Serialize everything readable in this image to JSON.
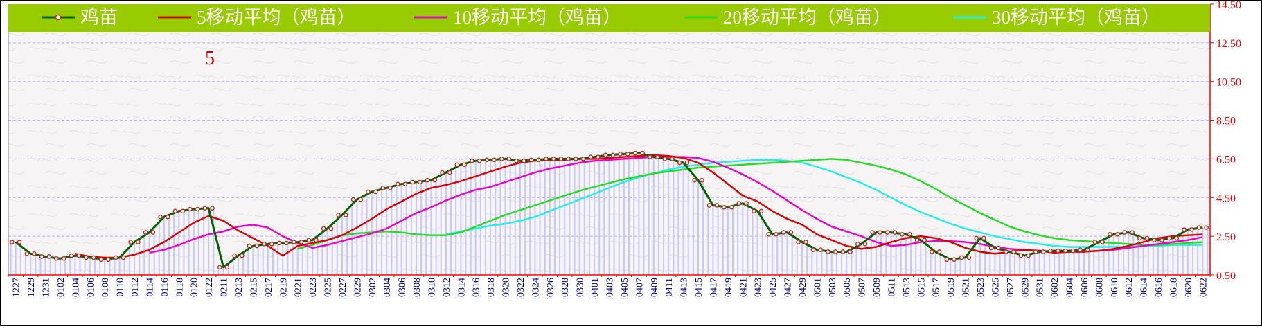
{
  "chart_data": {
    "type": "line",
    "title": "",
    "xlabel": "",
    "ylabel": "",
    "ylim": [
      0.5,
      14.5
    ],
    "yticks": [
      "0.50",
      "2.50",
      "4.50",
      "6.50",
      "8.50",
      "10.50",
      "12.50",
      "14.50"
    ],
    "annotation": "5",
    "grid": true,
    "legend_position": "top",
    "colors": {
      "legend_band": "#99cc00",
      "legend_text": "#ffffff",
      "axis": "#ff0000",
      "y_tick_text": "#ff0000",
      "x_tick_text": "#000080",
      "grid": "#b0b0ff",
      "bars": "#c8c8f4",
      "annotation": "#dd0000",
      "plot_background": "#f6f4f4"
    },
    "x_labels": [
      "1227",
      "1229",
      "1231",
      "0102",
      "0104",
      "0106",
      "0108",
      "0110",
      "0112",
      "0114",
      "0116",
      "0118",
      "0120",
      "0122",
      "0211",
      "0213",
      "0215",
      "0217",
      "0219",
      "0221",
      "0223",
      "0225",
      "0227",
      "0229",
      "0302",
      "0304",
      "0306",
      "0308",
      "0310",
      "0312",
      "0314",
      "0316",
      "0318",
      "0320",
      "0322",
      "0324",
      "0326",
      "0328",
      "0330",
      "0401",
      "0403",
      "0405",
      "0407",
      "0409",
      "0411",
      "0413",
      "0415",
      "0417",
      "0419",
      "0421",
      "0423",
      "0425",
      "0427",
      "0429",
      "0501",
      "0503",
      "0505",
      "0507",
      "0509",
      "0511",
      "0513",
      "0515",
      "0517",
      "0519",
      "0521",
      "0523",
      "0525",
      "0527",
      "0529",
      "0531",
      "0602",
      "0604",
      "0606",
      "0608",
      "0610",
      "0612",
      "0614",
      "0616",
      "0618",
      "0620",
      "0622"
    ],
    "series": [
      {
        "name": "鸡苗",
        "color": "#006400",
        "marker": true,
        "values": [
          2.2,
          1.6,
          1.45,
          1.35,
          1.5,
          1.4,
          1.3,
          1.4,
          2.2,
          2.7,
          3.5,
          3.8,
          3.9,
          3.95,
          0.9,
          1.5,
          2.0,
          2.1,
          2.15,
          2.2,
          2.3,
          2.9,
          3.6,
          4.4,
          4.8,
          5.0,
          5.2,
          5.3,
          5.4,
          5.8,
          6.2,
          6.4,
          6.45,
          6.5,
          6.4,
          6.45,
          6.5,
          6.5,
          6.5,
          6.6,
          6.7,
          6.75,
          6.8,
          6.6,
          6.5,
          6.3,
          5.4,
          4.1,
          4.0,
          4.2,
          3.8,
          2.6,
          2.7,
          2.2,
          1.8,
          1.7,
          1.7,
          2.1,
          2.7,
          2.7,
          2.6,
          2.3,
          1.7,
          1.3,
          1.4,
          2.4,
          1.9,
          1.7,
          1.5,
          1.7,
          1.75,
          1.75,
          1.8,
          2.2,
          2.6,
          2.7,
          2.4,
          2.3,
          2.4,
          2.85,
          2.95
        ]
      },
      {
        "name": "5移动平均（鸡苗）",
        "color": "#dd0000",
        "marker": false,
        "values": [
          null,
          null,
          null,
          null,
          1.6,
          1.45,
          1.4,
          1.4,
          1.55,
          1.8,
          2.2,
          2.7,
          3.2,
          3.55,
          3.3,
          2.8,
          2.4,
          2.0,
          1.5,
          2.0,
          2.15,
          2.3,
          2.55,
          2.95,
          3.4,
          3.9,
          4.3,
          4.7,
          5.0,
          5.15,
          5.35,
          5.6,
          5.85,
          6.1,
          6.3,
          6.4,
          6.45,
          6.45,
          6.5,
          6.5,
          6.55,
          6.6,
          6.65,
          6.7,
          6.65,
          6.55,
          6.3,
          5.8,
          5.2,
          4.6,
          4.3,
          3.8,
          3.4,
          3.1,
          2.6,
          2.3,
          2.0,
          1.85,
          1.95,
          2.2,
          2.4,
          2.5,
          2.4,
          2.2,
          1.9,
          1.7,
          1.6,
          1.7,
          1.8,
          1.75,
          1.65,
          1.7,
          1.7,
          1.75,
          1.85,
          2.0,
          2.2,
          2.4,
          2.5,
          2.55,
          2.6
        ]
      },
      {
        "name": "10移动平均（鸡苗）",
        "color": "#ee00cc",
        "marker": false,
        "values": [
          null,
          null,
          null,
          null,
          null,
          null,
          null,
          null,
          null,
          1.65,
          1.8,
          2.05,
          2.35,
          2.6,
          2.75,
          3.0,
          3.1,
          2.95,
          2.5,
          2.15,
          1.9,
          2.05,
          2.25,
          2.45,
          2.65,
          2.9,
          3.3,
          3.7,
          4.0,
          4.35,
          4.65,
          4.9,
          5.05,
          5.3,
          5.55,
          5.8,
          6.0,
          6.15,
          6.3,
          6.4,
          6.45,
          6.5,
          6.55,
          6.6,
          6.6,
          6.6,
          6.55,
          6.35,
          6.05,
          5.7,
          5.3,
          4.85,
          4.35,
          3.85,
          3.4,
          3.0,
          2.75,
          2.5,
          2.2,
          2.0,
          2.05,
          2.2,
          2.25,
          2.25,
          2.2,
          2.1,
          1.95,
          1.85,
          1.8,
          1.75,
          1.7,
          1.7,
          1.7,
          1.75,
          1.8,
          1.9,
          2.0,
          2.1,
          2.2,
          2.3,
          2.45
        ]
      },
      {
        "name": "20移动平均（鸡苗）",
        "color": "#22dd22",
        "marker": false,
        "values": [
          null,
          null,
          null,
          null,
          null,
          null,
          null,
          null,
          null,
          null,
          null,
          null,
          null,
          null,
          null,
          null,
          null,
          null,
          null,
          1.85,
          2.05,
          2.3,
          2.55,
          2.65,
          2.7,
          2.75,
          2.7,
          2.6,
          2.55,
          2.55,
          2.7,
          3.0,
          3.3,
          3.6,
          3.85,
          4.1,
          4.35,
          4.6,
          4.85,
          5.05,
          5.25,
          5.45,
          5.6,
          5.75,
          5.85,
          5.95,
          6.05,
          6.1,
          6.15,
          6.2,
          6.25,
          6.3,
          6.35,
          6.4,
          6.45,
          6.5,
          6.45,
          6.3,
          6.15,
          5.95,
          5.7,
          5.35,
          4.95,
          4.5,
          4.1,
          3.7,
          3.35,
          3.0,
          2.75,
          2.55,
          2.4,
          2.3,
          2.25,
          2.2,
          2.15,
          2.1,
          2.05,
          2.05,
          2.1,
          2.15,
          2.2
        ]
      },
      {
        "name": "30移动平均（鸡苗）",
        "color": "#22eeee",
        "marker": false,
        "values": [
          null,
          null,
          null,
          null,
          null,
          null,
          null,
          null,
          null,
          null,
          null,
          null,
          null,
          null,
          null,
          null,
          null,
          null,
          null,
          null,
          null,
          null,
          null,
          null,
          null,
          null,
          null,
          null,
          null,
          2.6,
          2.75,
          2.9,
          3.05,
          3.15,
          3.3,
          3.5,
          3.8,
          4.1,
          4.4,
          4.7,
          5.0,
          5.3,
          5.55,
          5.75,
          5.95,
          6.1,
          6.2,
          6.3,
          6.35,
          6.4,
          6.45,
          6.45,
          6.4,
          6.3,
          6.1,
          5.85,
          5.55,
          5.25,
          4.9,
          4.5,
          4.1,
          3.75,
          3.45,
          3.15,
          2.9,
          2.7,
          2.5,
          2.35,
          2.2,
          2.1,
          2.0,
          1.95,
          1.95,
          1.95,
          1.95,
          1.95,
          2.0,
          2.0,
          2.05,
          2.05,
          2.05
        ]
      }
    ],
    "bars": {
      "name": "",
      "values": [
        2.2,
        1.6,
        1.45,
        1.35,
        1.5,
        1.4,
        1.3,
        1.4,
        2.2,
        2.7,
        3.5,
        3.8,
        3.9,
        3.95,
        0.9,
        1.5,
        2.0,
        2.1,
        2.15,
        2.2,
        2.3,
        2.9,
        3.6,
        4.4,
        4.8,
        5.0,
        5.2,
        5.3,
        5.4,
        5.8,
        6.2,
        6.4,
        6.45,
        6.5,
        6.4,
        6.45,
        6.5,
        6.5,
        6.5,
        6.6,
        6.7,
        6.75,
        6.8,
        6.6,
        6.5,
        6.3,
        5.4,
        4.1,
        4.0,
        4.2,
        3.8,
        2.6,
        2.7,
        2.2,
        1.8,
        1.7,
        1.7,
        2.1,
        2.7,
        2.7,
        2.6,
        2.3,
        1.7,
        1.3,
        1.4,
        2.4,
        1.9,
        1.7,
        1.5,
        1.7,
        1.75,
        1.75,
        1.8,
        2.2,
        2.6,
        2.7,
        2.4,
        2.3,
        2.4,
        2.85,
        2.95
      ]
    }
  }
}
